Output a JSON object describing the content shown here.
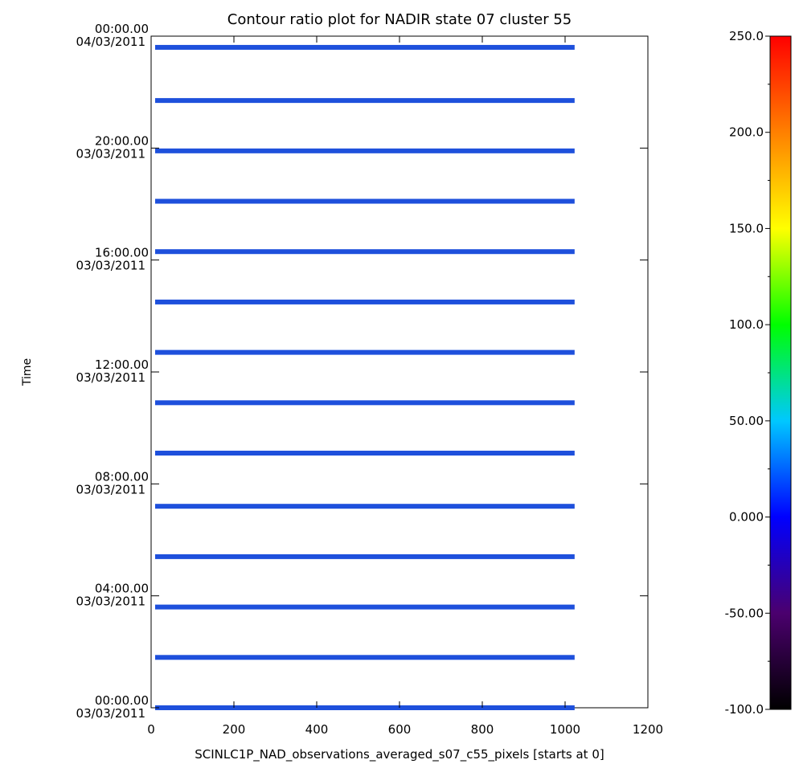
{
  "chart_data": {
    "type": "heatmap",
    "title": "Contour ratio plot for NADIR state 07 cluster 55",
    "xlabel": "SCINLC1P_NAD_observations_averaged_s07_c55_pixels [starts at 0]",
    "ylabel": "Time",
    "xlim": [
      0,
      1200
    ],
    "x_ticks": [
      "0",
      "200",
      "400",
      "600",
      "800",
      "1000",
      "1200"
    ],
    "x_tick_values": [
      0,
      200,
      400,
      600,
      800,
      1000,
      1200
    ],
    "ylim_hours": [
      0,
      24
    ],
    "y_tick_hours": [
      0,
      4,
      8,
      12,
      16,
      20,
      24
    ],
    "y_ticks": [
      {
        "time": "00:00.00",
        "date": "03/03/2011"
      },
      {
        "time": "04:00.00",
        "date": "03/03/2011"
      },
      {
        "time": "08:00.00",
        "date": "03/03/2011"
      },
      {
        "time": "12:00.00",
        "date": "03/03/2011"
      },
      {
        "time": "16:00.00",
        "date": "03/03/2011"
      },
      {
        "time": "20:00.00",
        "date": "03/03/2011"
      },
      {
        "time": "00:00.00",
        "date": "04/03/2011"
      }
    ],
    "observations": {
      "pixel_range": [
        0,
        1023
      ],
      "hours": [
        0.0,
        1.8,
        3.6,
        5.4,
        7.2,
        9.1,
        10.9,
        12.7,
        14.5,
        16.3,
        18.1,
        19.9,
        21.7,
        23.6
      ],
      "value": 0,
      "color": "#1e50dc"
    },
    "colorbar": {
      "min": -100,
      "max": 250,
      "ticks": [
        "-100.0",
        "-50.00",
        "0.000",
        "50.00",
        "100.0",
        "150.0",
        "200.0",
        "250.0"
      ],
      "tick_values": [
        -100,
        -50,
        0,
        50,
        100,
        150,
        200,
        250
      ],
      "stops": [
        "#000000",
        "#4b006e",
        "#0000ff",
        "#00c8ff",
        "#00ff00",
        "#ffff00",
        "#ff8000",
        "#ff0000"
      ]
    }
  }
}
